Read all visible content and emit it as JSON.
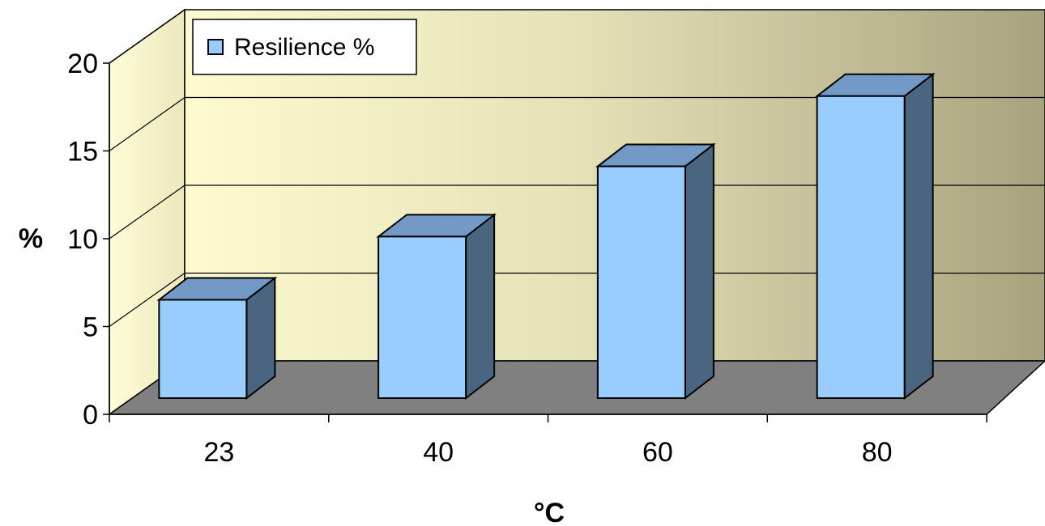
{
  "chart_data": {
    "type": "bar",
    "categories": [
      "23",
      "40",
      "60",
      "80"
    ],
    "series": [
      {
        "name": "Resilience %",
        "values": [
          5.6,
          9.2,
          13.2,
          17.2
        ]
      }
    ],
    "xlabel": "°C",
    "ylabel": "%",
    "ylim": [
      0,
      20
    ],
    "yticks": [
      "0",
      "5",
      "10",
      "15",
      "20"
    ],
    "grid": true,
    "legend_position": "top-left",
    "three_d": true,
    "colors": {
      "bar_front": "#99ccff",
      "bar_top": "#7399c6",
      "bar_side": "#4a6580",
      "floor": "#808080",
      "wall_left": "#fffbcc",
      "wall_right": "#a8a27e"
    }
  }
}
